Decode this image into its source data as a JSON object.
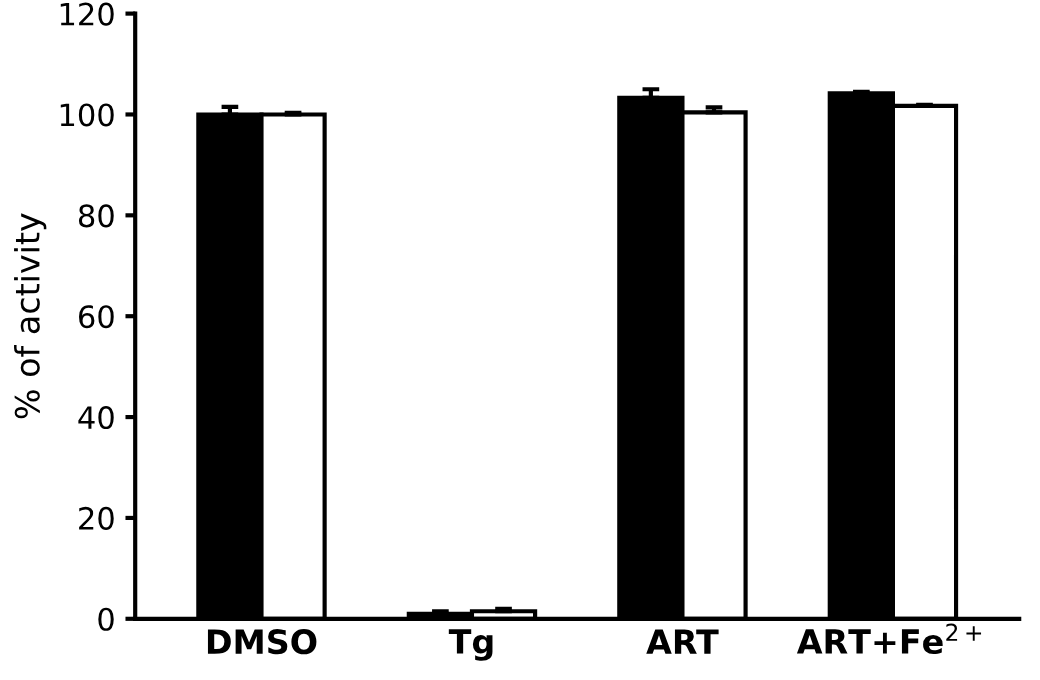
{
  "chart_data": {
    "type": "bar",
    "ylabel": "% of activity",
    "categories": [
      "DMSO",
      "Tg",
      "ART",
      "ART+Fe$^{2+}$"
    ],
    "series": [
      {
        "color": "#000000",
        "values": [
          100,
          1,
          103.3,
          104.2
        ],
        "errors": [
          1.5,
          0.5,
          1.7,
          0.3
        ]
      },
      {
        "color": "#ffffff",
        "values": [
          100,
          1.5,
          100.4,
          101.7
        ],
        "errors": [
          0.3,
          0.5,
          1,
          0.2
        ]
      }
    ],
    "ylim": [
      0,
      120
    ],
    "yticks": [
      0,
      20,
      40,
      60,
      80,
      100,
      120
    ],
    "grid": false,
    "legend": false
  }
}
